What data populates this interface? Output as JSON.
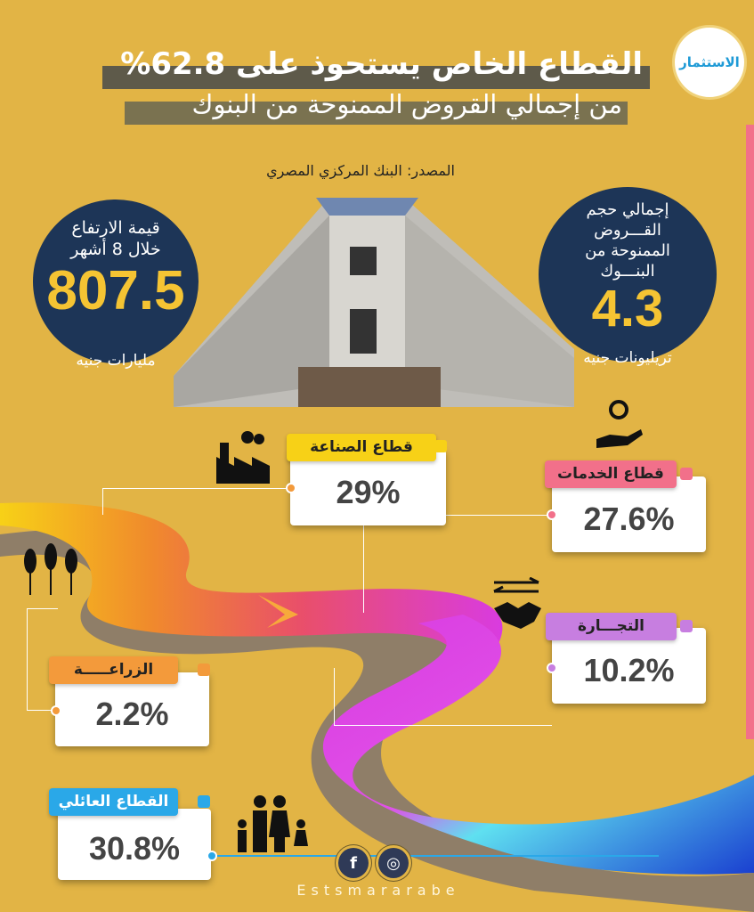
{
  "logo": {
    "text": "الاستثمار"
  },
  "header": {
    "title": "القطاع الخاص يستحوذ على 62.8%",
    "subtitle": "من إجمالي القروض الممنوحة من البنوك",
    "source": "المصدر: البنك المركزي المصري"
  },
  "left_stat": {
    "label_line1": "قيمة الارتفاع",
    "label_line2": "خلال 8 أشهر",
    "value": "807.5",
    "unit": "مليارات جنيه"
  },
  "right_stat": {
    "label_line1": "إجمالي حجم",
    "label_line2": "القـــروض",
    "label_line3": "الممنوحة من",
    "label_line4": "البنـــوك",
    "value": "4.3",
    "unit": "تريليونات جنيه"
  },
  "sectors": [
    {
      "label": "قطاع الصناعة",
      "value": "29%",
      "color": "#f7d117",
      "icon": "factory-icon"
    },
    {
      "label": "قطاع الخدمات",
      "value": "27.6%",
      "color": "#f2708a",
      "icon": "service-hand-gear-icon"
    },
    {
      "label": "التجـــارة",
      "value": "10.2%",
      "color": "#c77ee0",
      "icon": "handshake-icon"
    },
    {
      "label": "الزراعـــــة",
      "value": "2.2%",
      "color": "#f39a3b",
      "icon": "wheat-icon"
    },
    {
      "label": "القطاع العائلي",
      "value": "30.8%",
      "color": "#2aa8e8",
      "icon": "family-icon"
    }
  ],
  "footer": {
    "brand": "Estsmararabe",
    "social": [
      "facebook-icon",
      "dribbble-icon"
    ]
  },
  "colors": {
    "background": "#e2b445",
    "circle": "#1d3557",
    "accent_value": "#f5c433"
  }
}
